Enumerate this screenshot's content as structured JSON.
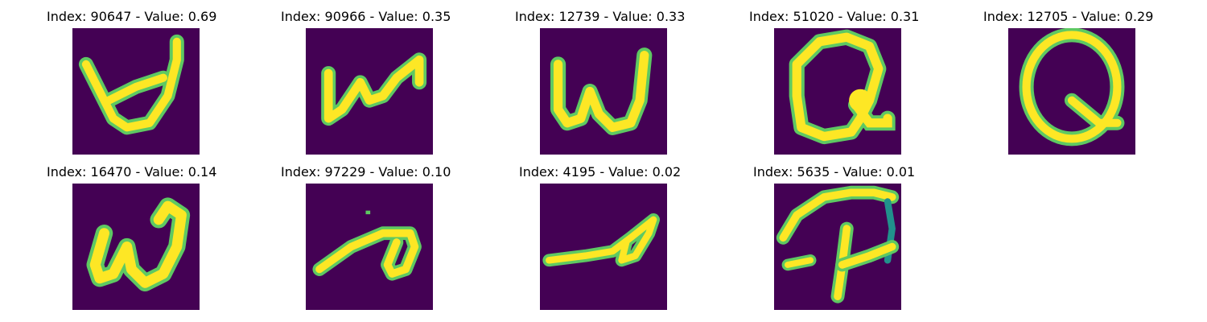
{
  "figure": {
    "panels": [
      {
        "title": "Index: 90647 - Value: 0.69",
        "glyph": "stroke-w-loop"
      },
      {
        "title": "Index: 90966 - Value: 0.35",
        "glyph": "stroke-w-small"
      },
      {
        "title": "Index: 12739 - Value: 0.33",
        "glyph": "stroke-w-upright"
      },
      {
        "title": "Index: 51020 - Value: 0.31",
        "glyph": "stroke-q-blob"
      },
      {
        "title": "Index: 12705 - Value: 0.29",
        "glyph": "stroke-q-oval"
      },
      {
        "title": "Index: 16470 - Value: 0.14",
        "glyph": "stroke-w-cursive"
      },
      {
        "title": "Index: 97229 - Value: 0.10",
        "glyph": "stroke-a-slant"
      },
      {
        "title": "Index: 4195 - Value: 0.02",
        "glyph": "stroke-a-flat"
      },
      {
        "title": "Index: 5635 - Value: 0.01",
        "glyph": "stroke-p-hook"
      }
    ],
    "colors": {
      "background": "#440154",
      "stroke_core": "#fde725",
      "stroke_edge": "#21918c",
      "stroke_mid": "#5ec962"
    }
  }
}
